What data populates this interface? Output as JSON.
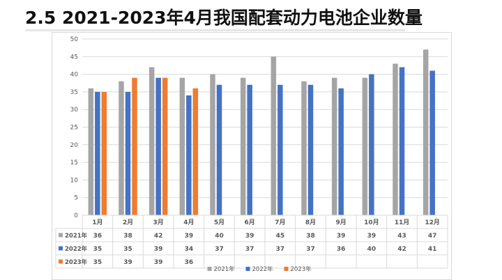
{
  "page": {
    "title": "2.5  2021-2023年4月我国配套动力电池企业数量"
  },
  "colors": {
    "2021年": "#a5a5a5",
    "2022年": "#4472c4",
    "2023年": "#ed7d31",
    "grid": "#d9d9d9",
    "text": "#595959"
  },
  "chart_data": {
    "type": "bar",
    "title": "",
    "xlabel": "",
    "ylabel": "",
    "ylim": [
      0,
      50
    ],
    "yticks": [
      0,
      5,
      10,
      15,
      20,
      25,
      30,
      35,
      40,
      45,
      50
    ],
    "grid": true,
    "legend": "bottom",
    "data_table": true,
    "categories": [
      "1月",
      "2月",
      "3月",
      "4月",
      "5月",
      "6月",
      "7月",
      "8月",
      "9月",
      "10月",
      "11月",
      "12月"
    ],
    "series": [
      {
        "name": "2021年",
        "color": "#a5a5a5",
        "values": [
          36,
          38,
          42,
          39,
          40,
          39,
          45,
          38,
          39,
          39,
          43,
          47
        ]
      },
      {
        "name": "2022年",
        "color": "#4472c4",
        "values": [
          35,
          35,
          39,
          34,
          37,
          37,
          37,
          37,
          36,
          40,
          42,
          41
        ]
      },
      {
        "name": "2023年",
        "color": "#ed7d31",
        "values": [
          35,
          39,
          39,
          36,
          null,
          null,
          null,
          null,
          null,
          null,
          null,
          null
        ]
      }
    ]
  }
}
